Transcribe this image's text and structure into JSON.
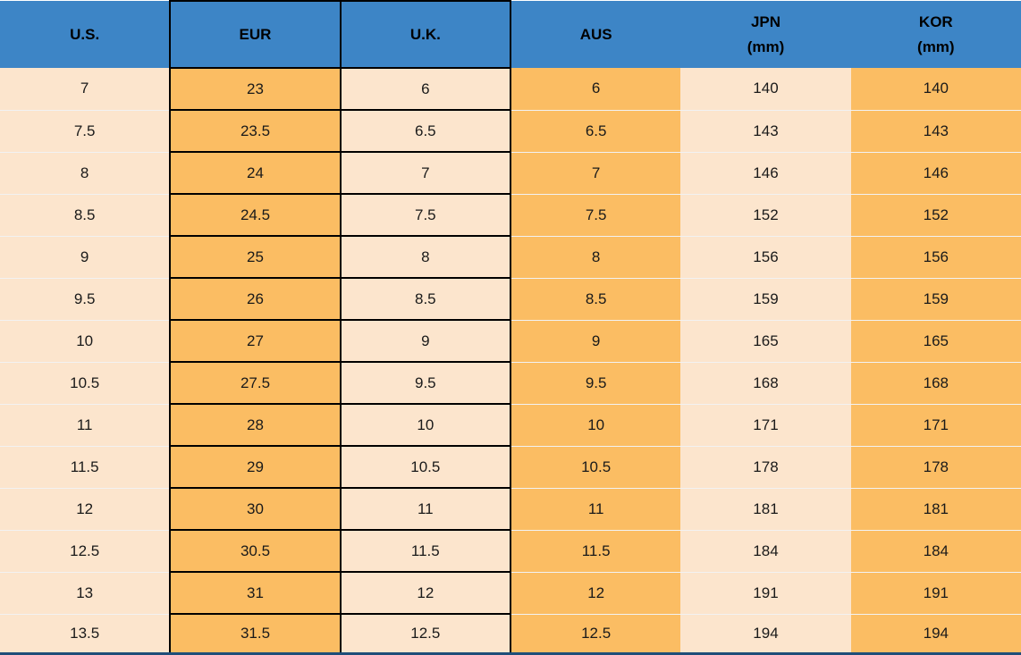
{
  "colors": {
    "header_bg": "#3d85c6",
    "cell_orange": "#fbbd63",
    "cell_cream": "#fce5cd",
    "grid_border": "#000000",
    "row_separator": "#f2f2f2",
    "header_text": "#000000",
    "body_text": "#1a1a1a",
    "bottom_strip": "#1f4e79"
  },
  "table": {
    "columns": [
      {
        "id": "us",
        "label": "U.S.",
        "sub": "",
        "fill": "cream",
        "black_grid": false
      },
      {
        "id": "eur",
        "label": "EUR",
        "sub": "",
        "fill": "orange",
        "black_grid": true
      },
      {
        "id": "uk",
        "label": "U.K.",
        "sub": "",
        "fill": "cream",
        "black_grid": true
      },
      {
        "id": "aus",
        "label": "AUS",
        "sub": "",
        "fill": "orange",
        "black_grid": false
      },
      {
        "id": "jpn",
        "label": "JPN",
        "sub": "(mm)",
        "fill": "cream",
        "black_grid": false
      },
      {
        "id": "kor",
        "label": "KOR",
        "sub": "(mm)",
        "fill": "orange",
        "black_grid": false
      }
    ],
    "rows": [
      [
        "7",
        "23",
        "6",
        "6",
        "140",
        "140"
      ],
      [
        "7.5",
        "23.5",
        "6.5",
        "6.5",
        "143",
        "143"
      ],
      [
        "8",
        "24",
        "7",
        "7",
        "146",
        "146"
      ],
      [
        "8.5",
        "24.5",
        "7.5",
        "7.5",
        "152",
        "152"
      ],
      [
        "9",
        "25",
        "8",
        "8",
        "156",
        "156"
      ],
      [
        "9.5",
        "26",
        "8.5",
        "8.5",
        "159",
        "159"
      ],
      [
        "10",
        "27",
        "9",
        "9",
        "165",
        "165"
      ],
      [
        "10.5",
        "27.5",
        "9.5",
        "9.5",
        "168",
        "168"
      ],
      [
        "11",
        "28",
        "10",
        "10",
        "171",
        "171"
      ],
      [
        "11.5",
        "29",
        "10.5",
        "10.5",
        "178",
        "178"
      ],
      [
        "12",
        "30",
        "11",
        "11",
        "181",
        "181"
      ],
      [
        "12.5",
        "30.5",
        "11.5",
        "11.5",
        "184",
        "184"
      ],
      [
        "13",
        "31",
        "12",
        "12",
        "191",
        "191"
      ],
      [
        "13.5",
        "31.5",
        "12.5",
        "12.5",
        "194",
        "194"
      ]
    ]
  }
}
